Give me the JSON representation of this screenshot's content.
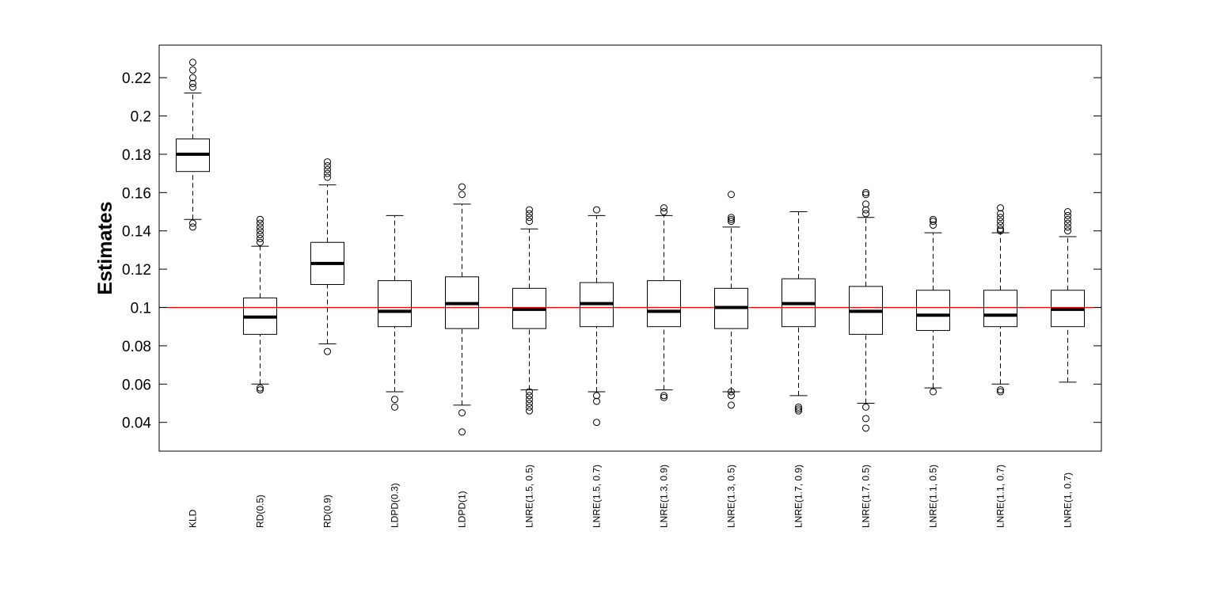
{
  "chart_data": {
    "type": "boxplot",
    "ylabel": "Estimates",
    "xlabel": "",
    "title": "",
    "ylim": [
      0.025,
      0.237
    ],
    "yticks": [
      "0.04",
      "0.06",
      "0.08",
      "0.1",
      "0.12",
      "0.14",
      "0.16",
      "0.18",
      "0.2",
      "0.22"
    ],
    "reference_line": {
      "y": 0.1,
      "color": "#ff0000"
    },
    "colors": {
      "box": "#000000",
      "median": "#000000",
      "reference": "#ff0000",
      "background": "#ffffff"
    },
    "grid": false,
    "categories": [
      "KLD",
      "RD(0.5)",
      "RD(0.9)",
      "LDPD(0.3)",
      "LDPD(1)",
      "LNRE(1.5, 0.5)",
      "LNRE(1.5, 0.7)",
      "LNRE(1.3, 0.9)",
      "LNRE(1.3, 0.5)",
      "LNRE(1.7, 0.9)",
      "LNRE(1.7, 0.5)",
      "LNRE(1.1, 0.5)",
      "LNRE(1.1, 0.7)",
      "LNRE(1, 0.7)"
    ],
    "boxes": [
      {
        "label": "KLD",
        "whisker_low": 0.146,
        "q1": 0.171,
        "median": 0.18,
        "q3": 0.188,
        "whisker_high": 0.212,
        "outliers": [
          0.142,
          0.144,
          0.215,
          0.217,
          0.22,
          0.224,
          0.228
        ]
      },
      {
        "label": "RD(0.5)",
        "whisker_low": 0.06,
        "q1": 0.086,
        "median": 0.095,
        "q3": 0.105,
        "whisker_high": 0.132,
        "outliers": [
          0.057,
          0.058,
          0.134,
          0.136,
          0.138,
          0.14,
          0.142,
          0.144,
          0.146
        ]
      },
      {
        "label": "RD(0.9)",
        "whisker_low": 0.081,
        "q1": 0.112,
        "median": 0.123,
        "q3": 0.134,
        "whisker_high": 0.164,
        "outliers": [
          0.077,
          0.168,
          0.17,
          0.172,
          0.174,
          0.176
        ]
      },
      {
        "label": "LDPD(0.3)",
        "whisker_low": 0.056,
        "q1": 0.09,
        "median": 0.098,
        "q3": 0.114,
        "whisker_high": 0.148,
        "outliers": [
          0.048,
          0.052
        ]
      },
      {
        "label": "LDPD(1)",
        "whisker_low": 0.049,
        "q1": 0.089,
        "median": 0.102,
        "q3": 0.116,
        "whisker_high": 0.154,
        "outliers": [
          0.035,
          0.045,
          0.159,
          0.163
        ]
      },
      {
        "label": "LNRE(1.5, 0.5)",
        "whisker_low": 0.057,
        "q1": 0.089,
        "median": 0.099,
        "q3": 0.11,
        "whisker_high": 0.141,
        "outliers": [
          0.046,
          0.048,
          0.05,
          0.052,
          0.054,
          0.056,
          0.145,
          0.147,
          0.149,
          0.151
        ]
      },
      {
        "label": "LNRE(1.5, 0.7)",
        "whisker_low": 0.056,
        "q1": 0.09,
        "median": 0.102,
        "q3": 0.113,
        "whisker_high": 0.148,
        "outliers": [
          0.04,
          0.051,
          0.054,
          0.151
        ]
      },
      {
        "label": "LNRE(1.3, 0.9)",
        "whisker_low": 0.057,
        "q1": 0.09,
        "median": 0.098,
        "q3": 0.114,
        "whisker_high": 0.148,
        "outliers": [
          0.053,
          0.054,
          0.15,
          0.152
        ]
      },
      {
        "label": "LNRE(1.3, 0.5)",
        "whisker_low": 0.056,
        "q1": 0.089,
        "median": 0.1,
        "q3": 0.11,
        "whisker_high": 0.142,
        "outliers": [
          0.049,
          0.054,
          0.056,
          0.145,
          0.146,
          0.147,
          0.159
        ]
      },
      {
        "label": "LNRE(1.7, 0.9)",
        "whisker_low": 0.054,
        "q1": 0.09,
        "median": 0.102,
        "q3": 0.115,
        "whisker_high": 0.15,
        "outliers": [
          0.046,
          0.047,
          0.048
        ]
      },
      {
        "label": "LNRE(1.7, 0.5)",
        "whisker_low": 0.05,
        "q1": 0.086,
        "median": 0.098,
        "q3": 0.111,
        "whisker_high": 0.147,
        "outliers": [
          0.037,
          0.042,
          0.048,
          0.149,
          0.151,
          0.154,
          0.159,
          0.16
        ]
      },
      {
        "label": "LNRE(1.1, 0.5)",
        "whisker_low": 0.058,
        "q1": 0.088,
        "median": 0.096,
        "q3": 0.109,
        "whisker_high": 0.139,
        "outliers": [
          0.056,
          0.143,
          0.145,
          0.146
        ]
      },
      {
        "label": "LNRE(1.1, 0.7)",
        "whisker_low": 0.06,
        "q1": 0.09,
        "median": 0.096,
        "q3": 0.109,
        "whisker_high": 0.139,
        "outliers": [
          0.056,
          0.057,
          0.14,
          0.141,
          0.143,
          0.145,
          0.147,
          0.149,
          0.152
        ]
      },
      {
        "label": "LNRE(1, 0.7)",
        "whisker_low": 0.061,
        "q1": 0.09,
        "median": 0.099,
        "q3": 0.109,
        "whisker_high": 0.137,
        "outliers": [
          0.14,
          0.142,
          0.144,
          0.146,
          0.148,
          0.15
        ]
      }
    ]
  }
}
